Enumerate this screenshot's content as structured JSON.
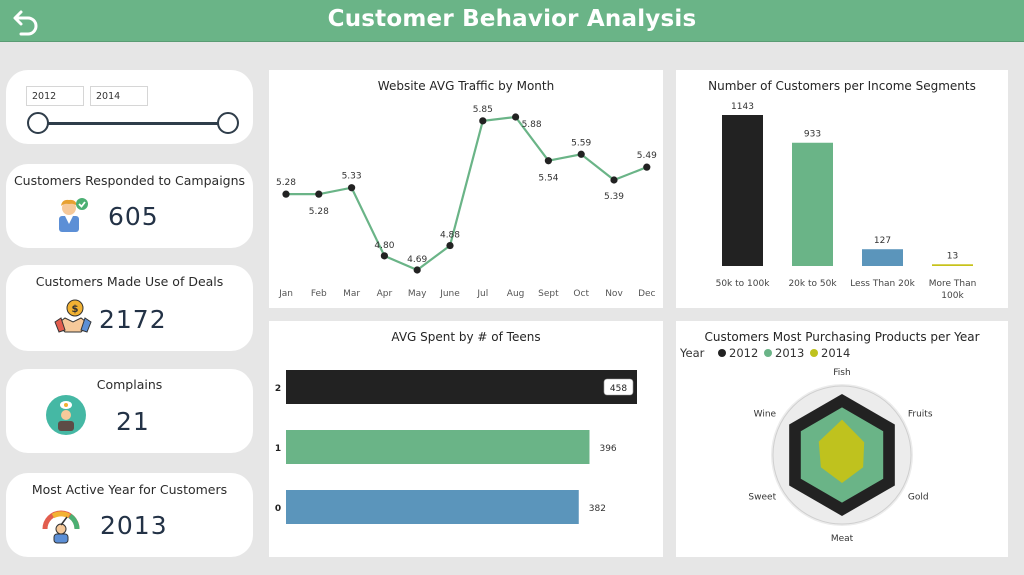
{
  "header": {
    "title": "Customer Behavior Analysis"
  },
  "slicer": {
    "from": "2012",
    "to": "2014"
  },
  "kpis": [
    {
      "title": "Customers Responded to Campaigns",
      "value": "605"
    },
    {
      "title": "Customers Made Use of Deals",
      "value": "2172"
    },
    {
      "title": "Complains",
      "value": "21"
    },
    {
      "title": "Most Active Year for Customers",
      "value": "2013"
    }
  ],
  "line_chart": {
    "title": "Website AVG Traffic by Month",
    "categories": [
      "Jan",
      "Feb",
      "Mar",
      "Apr",
      "May",
      "June",
      "Jul",
      "Aug",
      "Sept",
      "Oct",
      "Nov",
      "Dec"
    ],
    "values": [
      5.28,
      5.28,
      5.33,
      4.8,
      4.69,
      4.88,
      5.85,
      5.88,
      5.54,
      5.59,
      5.39,
      5.49
    ],
    "labels": [
      "5.28",
      "5.28",
      "5.33",
      "4.80",
      "4.69",
      "4.88",
      "5.85",
      "5.88",
      "5.54",
      "5.59",
      "5.39",
      "5.49"
    ],
    "color": "#6ab487"
  },
  "income_chart": {
    "title": "Number of Customers per Income Segments",
    "categories": [
      "50k to 100k",
      "20k to 50k",
      "Less Than 20k",
      "More Than 100k"
    ],
    "values": [
      1143,
      933,
      127,
      13
    ],
    "colors": [
      "#222222",
      "#6ab487",
      "#5b95bb",
      "#c7c21a"
    ]
  },
  "teens_chart": {
    "title": "AVG Spent by # of Teens",
    "categories": [
      "2",
      "1",
      "0"
    ],
    "values": [
      458,
      396,
      382
    ],
    "colors": [
      "#222222",
      "#6ab487",
      "#5b95bb"
    ]
  },
  "radar": {
    "title": "Customers Most Purchasing Products per Year",
    "legend_title": "Year",
    "axes": [
      "Fish",
      "Fruits",
      "Gold",
      "Meat",
      "Sweet",
      "Wine"
    ],
    "series": [
      {
        "name": "2012",
        "color": "#222222",
        "values": [
          1,
          1,
          1,
          1,
          1,
          1
        ]
      },
      {
        "name": "2013",
        "color": "#6ab487",
        "values": [
          0.78,
          0.78,
          0.78,
          0.78,
          0.78,
          0.78
        ]
      },
      {
        "name": "2014",
        "color": "#bfc21e",
        "values": [
          0.58,
          0.42,
          0.4,
          0.46,
          0.4,
          0.44
        ]
      }
    ]
  },
  "chart_data": [
    {
      "type": "line",
      "title": "Website AVG Traffic by Month",
      "x": [
        "Jan",
        "Feb",
        "Mar",
        "Apr",
        "May",
        "June",
        "Jul",
        "Aug",
        "Sept",
        "Oct",
        "Nov",
        "Dec"
      ],
      "y": [
        5.28,
        5.28,
        5.33,
        4.8,
        4.69,
        4.88,
        5.85,
        5.88,
        5.54,
        5.59,
        5.39,
        5.49
      ]
    },
    {
      "type": "bar",
      "title": "Number of Customers per Income Segments",
      "categories": [
        "50k to 100k",
        "20k to 50k",
        "Less Than 20k",
        "More Than 100k"
      ],
      "values": [
        1143,
        933,
        127,
        13
      ]
    },
    {
      "type": "bar",
      "orientation": "horizontal",
      "title": "AVG Spent by # of Teens",
      "categories": [
        "2",
        "1",
        "0"
      ],
      "values": [
        458,
        396,
        382
      ]
    },
    {
      "type": "radar",
      "title": "Customers Most Purchasing Products per Year",
      "axes": [
        "Fish",
        "Fruits",
        "Gold",
        "Meat",
        "Sweet",
        "Wine"
      ],
      "series": [
        {
          "name": "2012",
          "values": [
            1,
            1,
            1,
            1,
            1,
            1
          ]
        },
        {
          "name": "2013",
          "values": [
            0.78,
            0.78,
            0.78,
            0.78,
            0.78,
            0.78
          ]
        },
        {
          "name": "2014",
          "values": [
            0.58,
            0.42,
            0.4,
            0.46,
            0.4,
            0.44
          ]
        }
      ]
    }
  ]
}
